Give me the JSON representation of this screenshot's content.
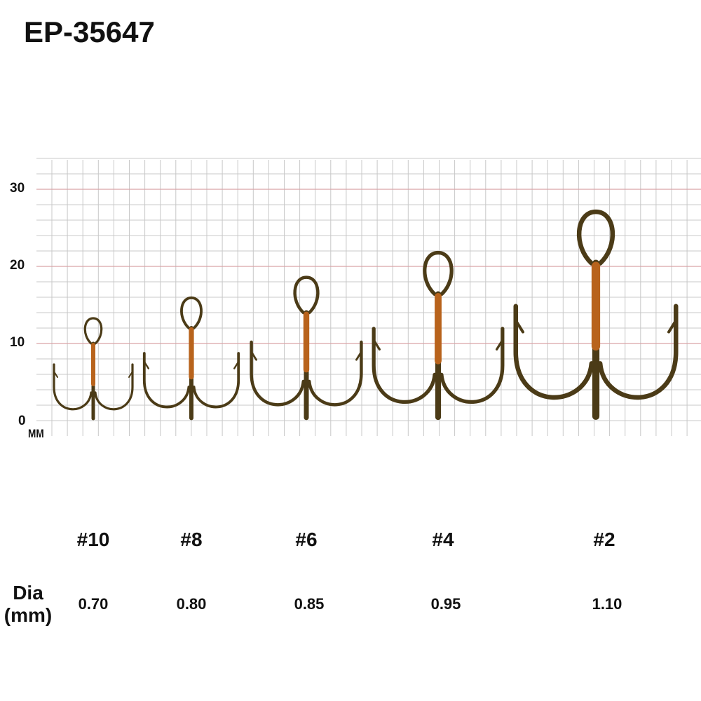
{
  "title": "EP-35647",
  "axis": {
    "ticks": [
      "30",
      "20",
      "10",
      "0"
    ],
    "unit": "MM"
  },
  "colors": {
    "grid": "#c8c8c8",
    "major_grid": "#d9a3a8",
    "hook": "#4b3b17",
    "thread": "#b8631c"
  },
  "dia_label": {
    "line1": "Dia",
    "line2": "(mm)"
  },
  "hooks": [
    {
      "size": "#10",
      "dia": "0.70"
    },
    {
      "size": "#8",
      "dia": "0.80"
    },
    {
      "size": "#6",
      "dia": "0.85"
    },
    {
      "size": "#4",
      "dia": "0.95"
    },
    {
      "size": "#2",
      "dia": "1.10"
    }
  ]
}
